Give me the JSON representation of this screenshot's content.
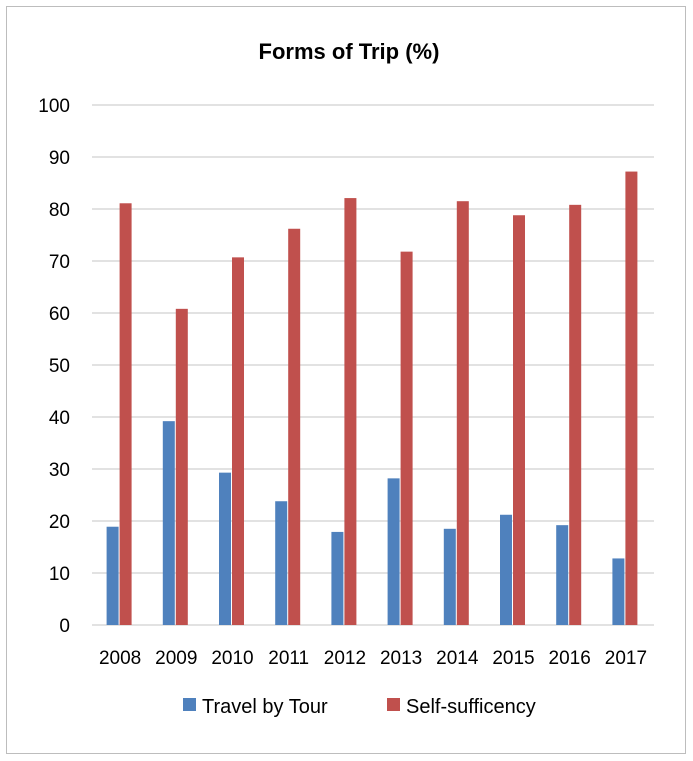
{
  "chart_data": {
    "type": "bar",
    "title": "Forms of Trip (%)",
    "xlabel": "",
    "ylabel": "",
    "ylim": [
      0,
      100
    ],
    "yticks": [
      0,
      10,
      20,
      30,
      40,
      50,
      60,
      70,
      80,
      90,
      100
    ],
    "categories": [
      "2008",
      "2009",
      "2010",
      "2011",
      "2012",
      "2013",
      "2014",
      "2015",
      "2016",
      "2017"
    ],
    "series": [
      {
        "name": "Travel by Tour",
        "color": "#4f81bd",
        "values": [
          18.9,
          39.2,
          29.3,
          23.8,
          17.9,
          28.2,
          18.5,
          21.2,
          19.2,
          12.8
        ]
      },
      {
        "name": "Self-sufficency",
        "color": "#c0504d",
        "values": [
          81.1,
          60.8,
          70.7,
          76.2,
          82.1,
          71.8,
          81.5,
          78.8,
          80.8,
          87.2
        ]
      }
    ],
    "grid": true,
    "legend_position": "bottom"
  }
}
